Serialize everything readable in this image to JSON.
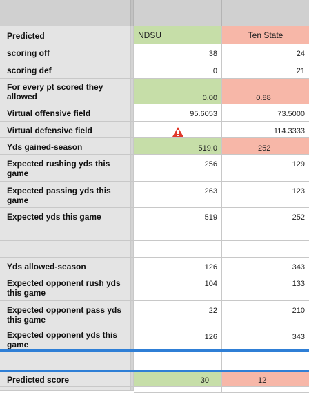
{
  "columns": {
    "team_a": "NDSU",
    "team_b": "Ten State"
  },
  "rows": [
    {
      "label": "Predicted",
      "a": "NDSU",
      "b": "Ten State"
    },
    {
      "label": "scoring off",
      "a": "38",
      "b": "24"
    },
    {
      "label": "scoring def",
      "a": "0",
      "b": "21"
    },
    {
      "label": "For every pt scored they allowed",
      "a": "0.00",
      "b": "0.88"
    },
    {
      "label": "Virtual offensive field",
      "a": "95.6053",
      "b": "73.5000"
    },
    {
      "label": "Virtual defensive field",
      "a": "",
      "b": "114.3333"
    },
    {
      "label": "Yds gained-season",
      "a": "519.0",
      "b": "252"
    },
    {
      "label": "Expected rushing yds this game",
      "a": "256",
      "b": "129"
    },
    {
      "label": "Expected passing yds this game",
      "a": "263",
      "b": "123"
    },
    {
      "label": "Expected yds this game",
      "a": "519",
      "b": "252"
    },
    {
      "label": "",
      "a": "",
      "b": ""
    },
    {
      "label": "",
      "a": "",
      "b": ""
    },
    {
      "label": "Yds allowed-season",
      "a": "126",
      "b": "343"
    },
    {
      "label": "Expected opponent rush yds this game",
      "a": "104",
      "b": "133"
    },
    {
      "label": "Expected opponent pass yds this game",
      "a": "22",
      "b": "210"
    },
    {
      "label": "Expected opponent yds this game",
      "a": "126",
      "b": "343"
    },
    {
      "label": "",
      "a": "",
      "b": ""
    },
    {
      "label": "Predicted score",
      "a": "30",
      "b": "12"
    }
  ],
  "icons": {
    "warning": "warning-triangle-icon"
  },
  "colors": {
    "green": "#c6dea8",
    "red": "#f7b7a8",
    "selection": "#2f7fd6"
  }
}
